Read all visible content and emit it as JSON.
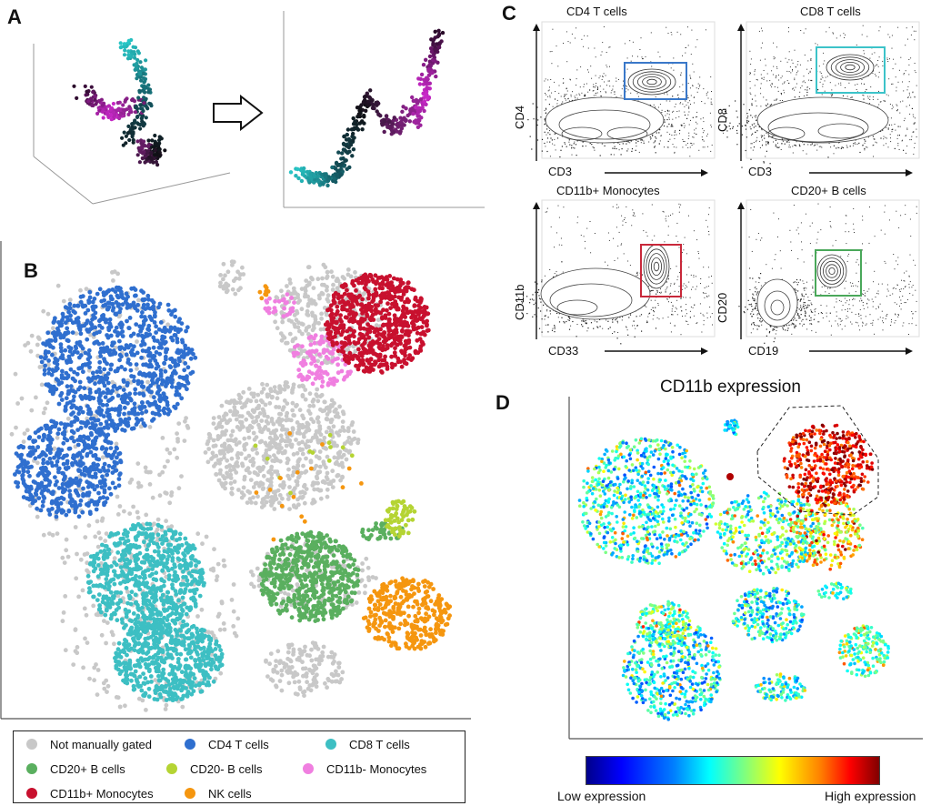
{
  "panels": {
    "a": "A",
    "b": "B",
    "c": "C",
    "d": "D"
  },
  "flow": {
    "cd4": {
      "title": "CD4 T cells",
      "ylabel": "CD4",
      "xlabel": "CD3",
      "gate": "#3a78c9"
    },
    "cd8": {
      "title": "CD8 T cells",
      "ylabel": "CD8",
      "xlabel": "CD3",
      "gate": "#3cc3c9"
    },
    "mono": {
      "title": "CD11b+ Monocytes",
      "ylabel": "CD11b",
      "xlabel": "CD33",
      "gate": "#c8283a"
    },
    "bcell": {
      "title": "CD20+ B cells",
      "ylabel": "CD20",
      "xlabel": "CD19",
      "gate": "#4aa85a"
    }
  },
  "legend": [
    {
      "label": "Not manually gated",
      "color": "#c8c8c8"
    },
    {
      "label": "CD4 T cells",
      "color": "#2f6fcf"
    },
    {
      "label": "CD8 T cells",
      "color": "#3dbfc3"
    },
    {
      "label": "CD20+ B cells",
      "color": "#5aaf5f"
    },
    {
      "label": "CD20- B cells",
      "color": "#b5d433"
    },
    {
      "label": "CD11b- Monocytes",
      "color": "#f07fe0"
    },
    {
      "label": "CD11b+ Monocytes",
      "color": "#c8102e"
    },
    {
      "label": "NK cells",
      "color": "#f5960f"
    }
  ],
  "expression": {
    "title": "CD11b expression",
    "low_label": "Low expression",
    "high_label": "High expression"
  },
  "chart_data": [
    {
      "type": "scatter",
      "panel": "A",
      "description_series": [
        "manifold 3D",
        "manifold embedded 2D"
      ]
    },
    {
      "type": "scatter",
      "panel": "B",
      "series": [
        {
          "name": "Not manually gated"
        },
        {
          "name": "CD4 T cells"
        },
        {
          "name": "CD8 T cells"
        },
        {
          "name": "CD20+ B cells"
        },
        {
          "name": "CD20- B cells"
        },
        {
          "name": "CD11b- Monocytes"
        },
        {
          "name": "CD11b+ Monocytes"
        },
        {
          "name": "NK cells"
        }
      ]
    },
    {
      "type": "scatter",
      "panel": "C",
      "title": "CD4 T cells",
      "xlabel": "CD3",
      "ylabel": "CD4"
    },
    {
      "type": "scatter",
      "panel": "C",
      "title": "CD8 T cells",
      "xlabel": "CD3",
      "ylabel": "CD8"
    },
    {
      "type": "scatter",
      "panel": "C",
      "title": "CD11b+ Monocytes",
      "xlabel": "CD33",
      "ylabel": "CD11b"
    },
    {
      "type": "scatter",
      "panel": "C",
      "title": "CD20+ B cells",
      "xlabel": "CD19",
      "ylabel": "CD20"
    },
    {
      "type": "scatter",
      "panel": "D",
      "title": "CD11b expression",
      "colorbar": [
        "Low expression",
        "High expression"
      ]
    }
  ]
}
